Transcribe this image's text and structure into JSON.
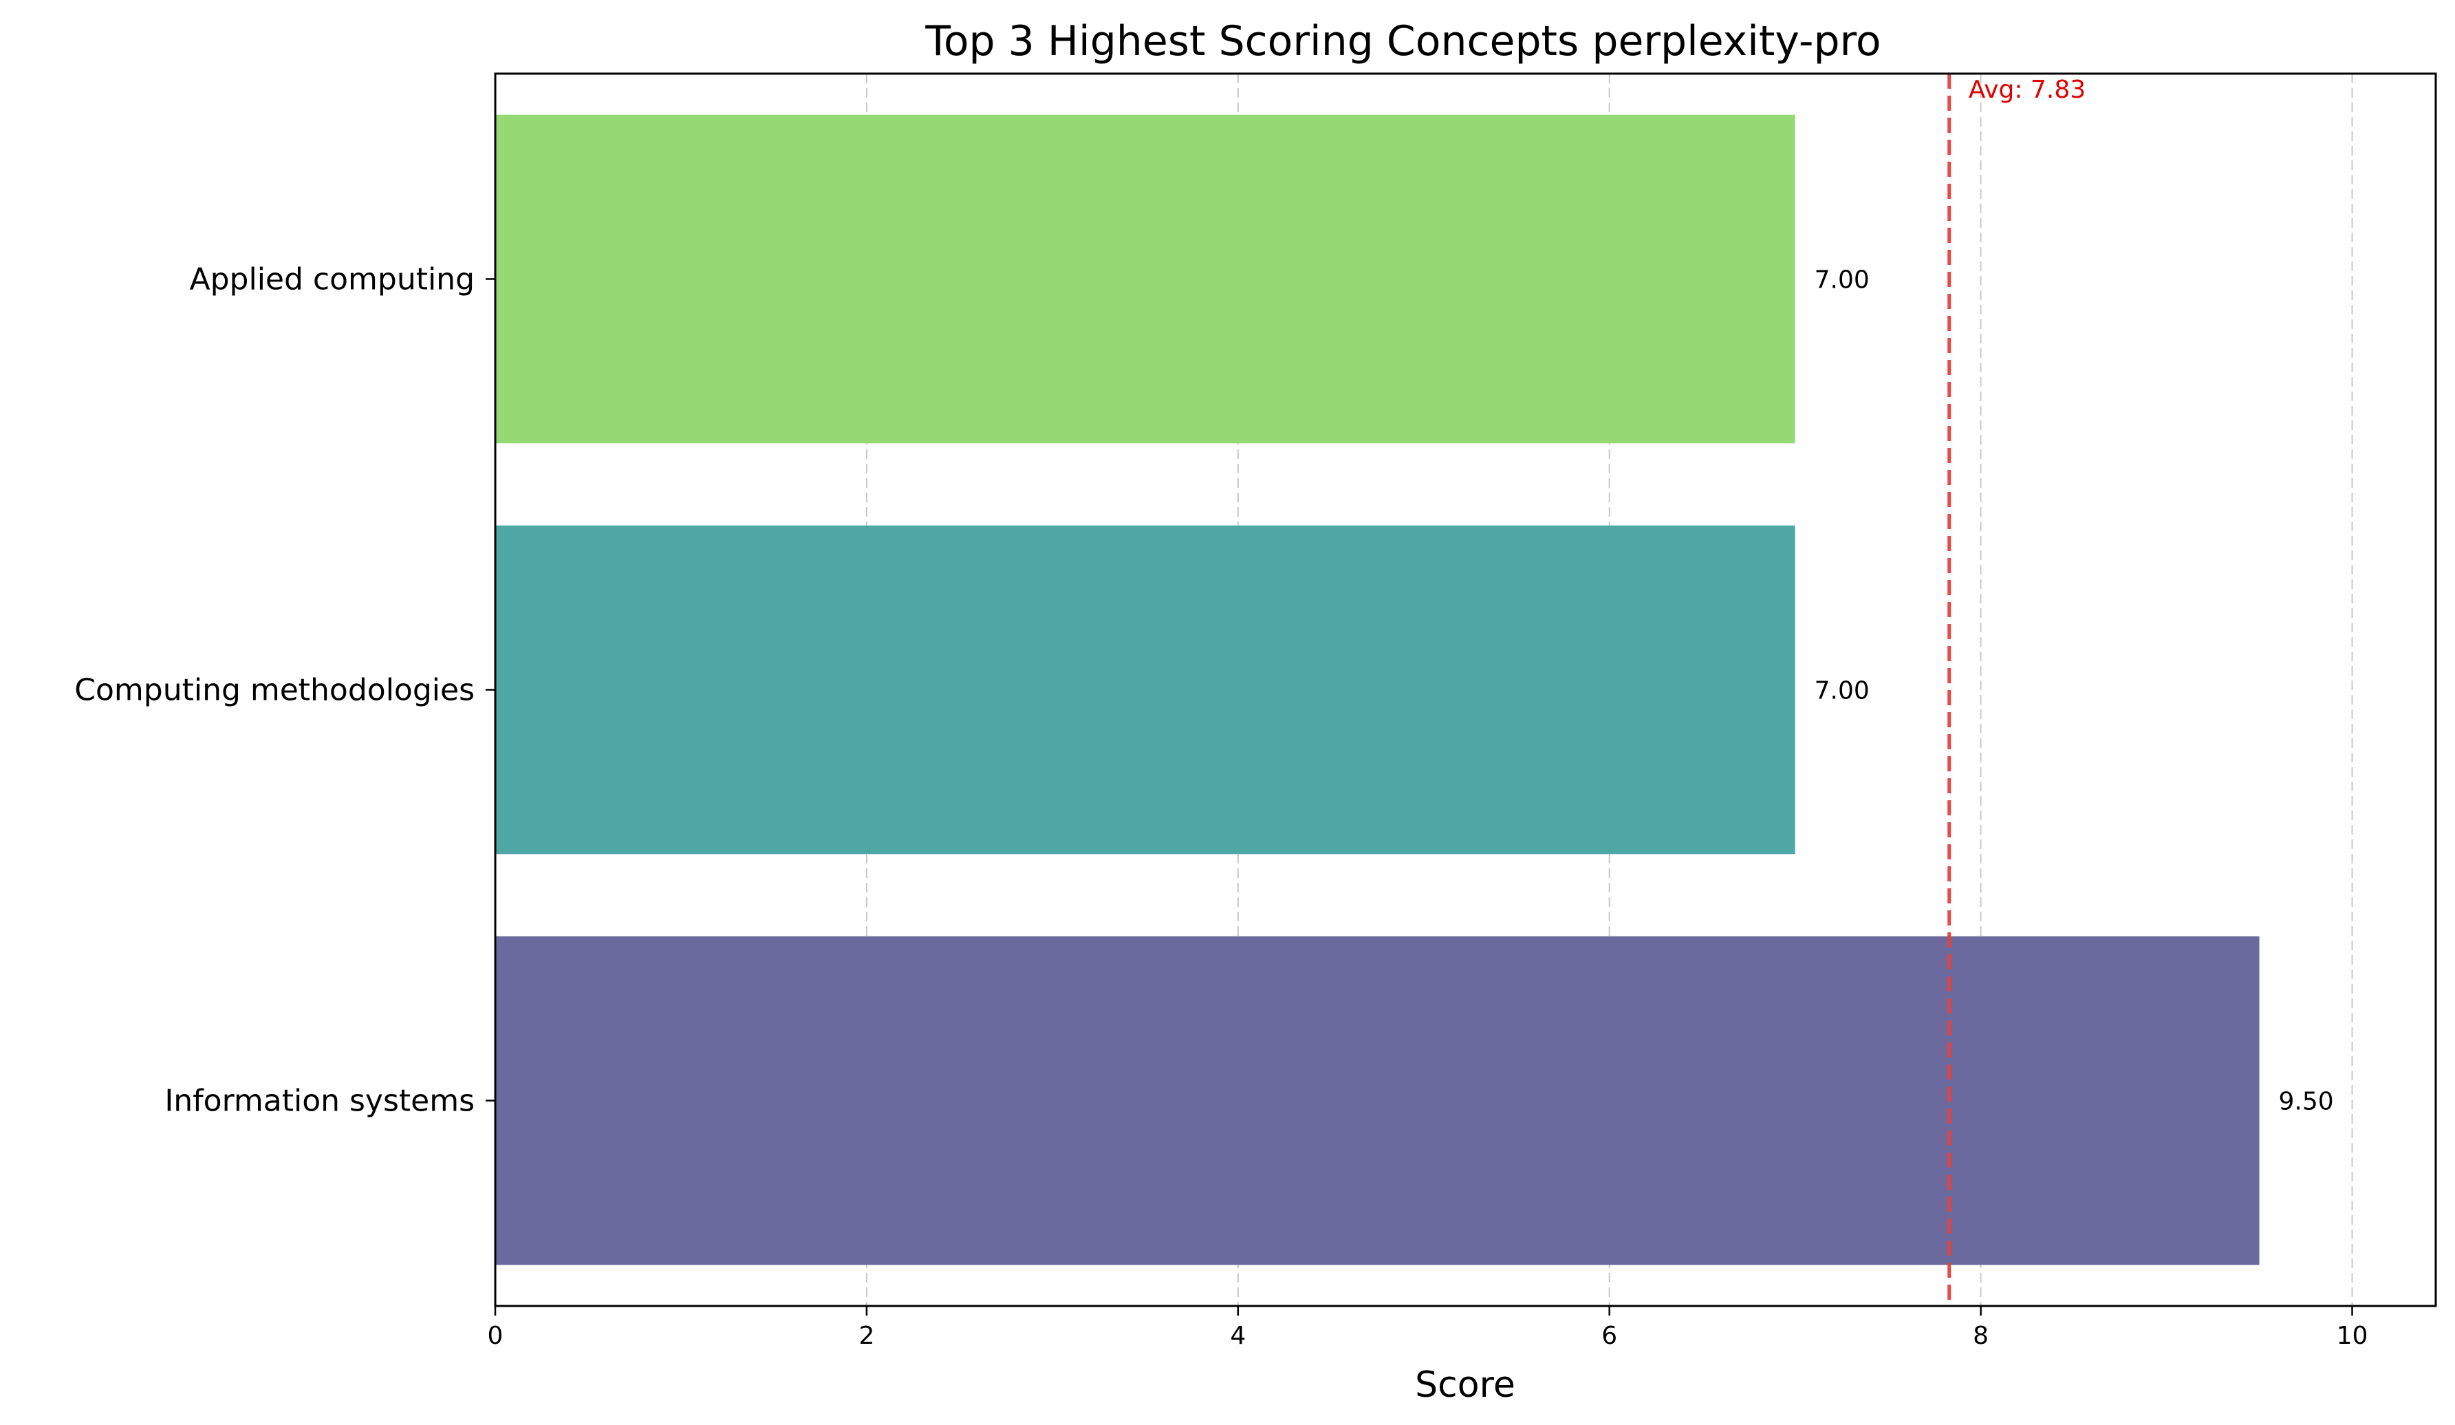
{
  "chart_data": {
    "type": "bar",
    "orientation": "horizontal",
    "title": "Top 3 Highest Scoring Concepts perplexity-pro",
    "xlabel": "Score",
    "ylabel": "",
    "categories": [
      "Information systems",
      "Computing methodologies",
      "Applied computing"
    ],
    "values": [
      9.5,
      7.0,
      7.0
    ],
    "value_labels": [
      "9.50",
      "7.00",
      "7.00"
    ],
    "bar_colors": [
      "#6a6a9e",
      "#4ea7a4",
      "#94d973"
    ],
    "xlim": [
      0,
      10.45
    ],
    "xticks": [
      0,
      2,
      4,
      6,
      8,
      10
    ],
    "xtick_labels": [
      "0",
      "2",
      "4",
      "6",
      "8",
      "10"
    ],
    "grid": "x dashed",
    "average": {
      "value": 7.83,
      "label": "Avg: 7.83",
      "color": "#e8413c"
    }
  }
}
